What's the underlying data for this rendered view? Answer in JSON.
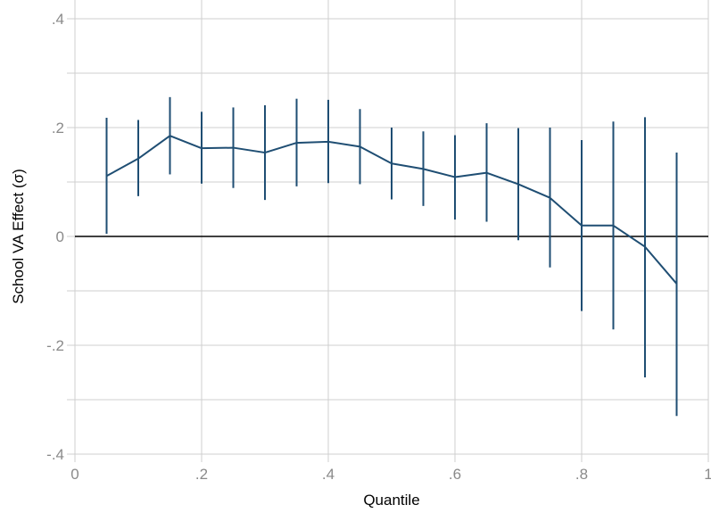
{
  "chart_data": {
    "type": "line",
    "xlabel": "Quantile",
    "ylabel": "School VA Effect (σ)",
    "xlim": [
      0,
      1
    ],
    "ylim": [
      -0.4,
      0.4
    ],
    "x_ticks": [
      0,
      0.2,
      0.4,
      0.6,
      0.8,
      1
    ],
    "x_tick_labels": [
      "0",
      ".2",
      ".4",
      ".6",
      ".8",
      "1"
    ],
    "y_ticks": [
      -0.4,
      -0.2,
      0,
      0.2,
      0.4
    ],
    "y_tick_labels": [
      "-.4",
      "-.2",
      "0",
      ".2",
      ".4"
    ],
    "grid": true,
    "reference_line_y": 0,
    "series": [
      {
        "x": [
          0.05,
          0.1,
          0.15,
          0.2,
          0.25,
          0.3,
          0.35,
          0.4,
          0.45,
          0.5,
          0.55,
          0.6,
          0.65,
          0.7,
          0.75,
          0.8,
          0.85,
          0.9,
          0.95
        ],
        "y": [
          0.111,
          0.143,
          0.185,
          0.162,
          0.163,
          0.154,
          0.172,
          0.174,
          0.165,
          0.134,
          0.124,
          0.109,
          0.117,
          0.096,
          0.071,
          0.02,
          0.02,
          -0.019,
          -0.087
        ],
        "ci_low": [
          0.005,
          0.074,
          0.114,
          0.097,
          0.089,
          0.067,
          0.092,
          0.098,
          0.096,
          0.068,
          0.056,
          0.031,
          0.027,
          -0.007,
          -0.057,
          -0.137,
          -0.171,
          -0.259,
          -0.33
        ],
        "ci_high": [
          0.218,
          0.214,
          0.256,
          0.229,
          0.237,
          0.241,
          0.253,
          0.251,
          0.234,
          0.2,
          0.193,
          0.186,
          0.208,
          0.199,
          0.2,
          0.177,
          0.211,
          0.219,
          0.154
        ]
      }
    ],
    "colors": {
      "series": "#1f4e73",
      "grid": "#cfcfcf",
      "zero_line": "#000000",
      "tick_label": "#8a8a8a"
    }
  }
}
